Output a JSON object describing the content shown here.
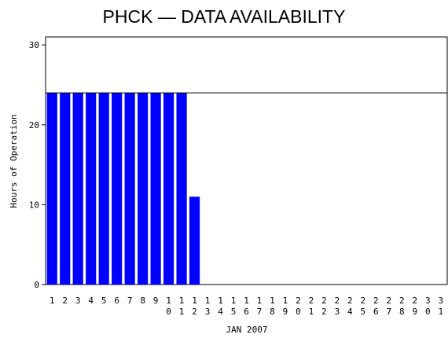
{
  "chart_data": {
    "type": "bar",
    "title": "PHCK — DATA AVAILABILITY",
    "x_label": "JAN 2007",
    "y_label": "Hours of Operation",
    "categories": [
      "1",
      "2",
      "3",
      "4",
      "5",
      "6",
      "7",
      "8",
      "9",
      "10",
      "11",
      "12",
      "13",
      "14",
      "15",
      "16",
      "17",
      "18",
      "19",
      "20",
      "21",
      "22",
      "23",
      "24",
      "25",
      "26",
      "27",
      "28",
      "29",
      "30",
      "31"
    ],
    "values": [
      24,
      24,
      24,
      24,
      24,
      24,
      24,
      24,
      24,
      24,
      24,
      11,
      0,
      0,
      0,
      0,
      0,
      0,
      0,
      0,
      0,
      0,
      0,
      0,
      0,
      0,
      0,
      0,
      0,
      0,
      0
    ],
    "color": "#0000ff",
    "reference_line": 24,
    "ylim": [
      0,
      31
    ],
    "yticks": [
      0,
      10,
      20,
      30
    ]
  }
}
